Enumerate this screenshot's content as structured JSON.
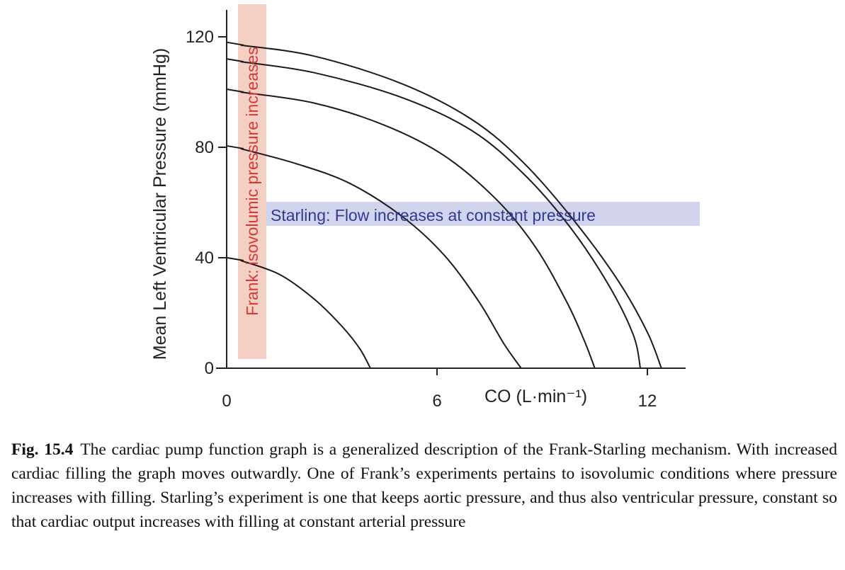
{
  "chart_data": {
    "type": "line",
    "xlabel": "CO (L·min⁻¹)",
    "ylabel": "Mean Left Ventricular Pressure (mmHg)",
    "xlim": [
      0,
      13
    ],
    "ylim": [
      0,
      130
    ],
    "xticks": [
      {
        "value": 0,
        "label": "0"
      },
      {
        "value": 6,
        "label": "6"
      },
      {
        "value": 12,
        "label": "12"
      }
    ],
    "yticks": [
      {
        "value": 0,
        "label": "0"
      },
      {
        "value": 40,
        "label": "40"
      },
      {
        "value": 80,
        "label": "80"
      },
      {
        "value": 120,
        "label": "120"
      }
    ],
    "grid": false,
    "series": [
      {
        "points": [
          [
            0.4,
            39
          ],
          [
            1.5,
            34
          ],
          [
            2.5,
            25
          ],
          [
            3.3,
            15
          ],
          [
            3.8,
            7
          ],
          [
            4.1,
            0
          ]
        ]
      },
      {
        "points": [
          [
            0.4,
            79.5
          ],
          [
            2.0,
            74
          ],
          [
            3.5,
            67
          ],
          [
            5.0,
            55
          ],
          [
            6.2,
            41
          ],
          [
            7.2,
            24
          ],
          [
            7.9,
            9
          ],
          [
            8.4,
            0
          ]
        ]
      },
      {
        "points": [
          [
            0.4,
            100
          ],
          [
            2.5,
            96
          ],
          [
            4.5,
            88
          ],
          [
            6.2,
            77
          ],
          [
            7.7,
            61
          ],
          [
            8.8,
            44
          ],
          [
            9.7,
            24
          ],
          [
            10.2,
            10
          ],
          [
            10.5,
            0
          ]
        ]
      },
      {
        "points": [
          [
            0.4,
            111
          ],
          [
            2.5,
            107
          ],
          [
            5.0,
            98
          ],
          [
            7.0,
            86
          ],
          [
            8.5,
            70
          ],
          [
            9.8,
            51
          ],
          [
            10.9,
            30
          ],
          [
            11.6,
            12
          ],
          [
            11.8,
            0
          ]
        ]
      },
      {
        "points": [
          [
            0.4,
            117
          ],
          [
            2.5,
            113
          ],
          [
            5.0,
            103
          ],
          [
            7.0,
            90
          ],
          [
            8.5,
            74
          ],
          [
            10.0,
            52
          ],
          [
            11.2,
            31
          ],
          [
            12.0,
            13
          ],
          [
            12.4,
            0
          ]
        ]
      }
    ],
    "annotations": {
      "frank": {
        "text": "Frank: isovolumic pressure increases",
        "fill": "#f3cfc4",
        "text_color": "#d53a3a"
      },
      "starling": {
        "text": "Starling: Flow increases at constant pressure",
        "fill": "#d2d4ee",
        "text_color": "#323a90"
      }
    }
  },
  "caption": {
    "label": "Fig. 15.4",
    "text": "The cardiac pump function graph is a generalized description of the Frank-Starling mechanism. With increased cardiac filling the graph moves outwardly. One of Frank’s experiments pertains to isovolumic conditions where pressure increases with filling. Starling’s experiment is one that keeps aortic pressure, and thus also ventricular pressure, constant so that cardiac output increases with filling at constant arterial pressure"
  },
  "colors": {
    "axis": "#222222",
    "curve": "#1a1a1a"
  }
}
